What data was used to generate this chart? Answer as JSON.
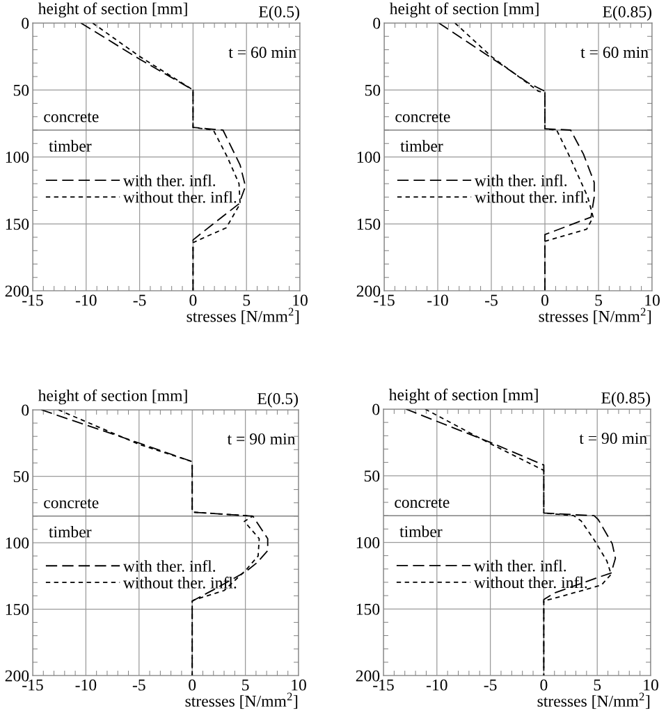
{
  "chart_data": [
    {
      "type": "line",
      "title": "E(0.5)",
      "xlabel": "stresses [N/mm$^{2}$]",
      "ylabel": "height of section [mm]",
      "annotations": [
        "t = 60 min",
        "concrete",
        "timber"
      ],
      "series": [
        {
          "name": "with ther. infl.",
          "color": "#000000",
          "line_style": "dashed",
          "x": [
            -10.5,
            -5,
            0,
            0,
            2.8,
            4.4,
            4.9,
            4.3,
            1.1,
            0,
            0
          ],
          "values": [
            0,
            27,
            50,
            78,
            80,
            106,
            122,
            135,
            155,
            162,
            200
          ]
        },
        {
          "name": "without ther. infl.",
          "color": "#000000",
          "line_style": "dotted",
          "x": [
            -9.4,
            -5,
            0,
            0,
            1.9,
            3.2,
            4.3,
            4.4,
            3.1,
            1.1,
            0,
            0
          ],
          "values": [
            0,
            25,
            50,
            78,
            80,
            100,
            120,
            135,
            153,
            160,
            164,
            200
          ]
        }
      ],
      "xlim": [
        -15,
        10
      ],
      "ylim": [
        200,
        0
      ],
      "xticks": [
        -15,
        -10,
        -5,
        0,
        5,
        10
      ],
      "yticks": [
        0,
        50,
        100,
        150,
        200
      ],
      "grid": true,
      "legend": "left",
      "ref_lines": [
        {
          "axis": "y",
          "value": 80,
          "color": "#808080"
        }
      ]
    },
    {
      "type": "line",
      "title": "E(0.85)",
      "xlabel": "stresses [N/mm$^{2}$]",
      "ylabel": "height of section [mm]",
      "annotations": [
        "t = 60 min",
        "concrete",
        "timber"
      ],
      "series": [
        {
          "name": "with ther. infl.",
          "color": "#000000",
          "line_style": "dashed",
          "x": [
            -9.9,
            -5,
            -1.5,
            0,
            0,
            2.4,
            3.6,
            4.6,
            4.6,
            4.3,
            0,
            0
          ],
          "values": [
            0,
            26,
            45,
            51,
            79,
            80,
            98,
            119,
            130,
            145,
            158,
            200
          ]
        },
        {
          "name": "without ther. infl.",
          "color": "#000000",
          "line_style": "dotted",
          "x": [
            -8.4,
            -5,
            -0.6,
            0,
            0,
            1.1,
            2.2,
            4.0,
            4.5,
            3.9,
            0,
            0
          ],
          "values": [
            0,
            25,
            51,
            52,
            79,
            80,
            98,
            130,
            145,
            154,
            163,
            200
          ]
        }
      ],
      "xlim": [
        -15,
        10
      ],
      "ylim": [
        200,
        0
      ],
      "xticks": [
        -15,
        -10,
        -5,
        0,
        5,
        10
      ],
      "yticks": [
        0,
        50,
        100,
        150,
        200
      ],
      "grid": true,
      "legend": "left",
      "ref_lines": [
        {
          "axis": "y",
          "value": 80,
          "color": "#808080"
        }
      ]
    },
    {
      "type": "line",
      "title": "E(0.5)",
      "xlabel": "stresses [N/mm$^{2}$]",
      "ylabel": "height of section [mm]",
      "annotations": [
        "t = 90 min",
        "concrete",
        "timber"
      ],
      "series": [
        {
          "name": "with ther. infl.",
          "color": "#000000",
          "line_style": "dashed",
          "x": [
            -14.2,
            -5,
            0,
            0,
            5.7,
            7.1,
            7.1,
            6.1,
            5.0,
            2.1,
            0,
            0
          ],
          "values": [
            0,
            25,
            39,
            77,
            80,
            97,
            106,
            115,
            122,
            135,
            144,
            200
          ]
        },
        {
          "name": "without ther. infl.",
          "color": "#000000",
          "line_style": "dotted",
          "x": [
            -12.6,
            -5,
            0,
            0,
            5.7,
            4.9,
            6.3,
            6.2,
            5.0,
            3.0,
            0.2,
            0,
            0
          ],
          "values": [
            0,
            26,
            39,
            77,
            80,
            84,
            97,
            110,
            121,
            136,
            143,
            144,
            200
          ]
        }
      ],
      "xlim": [
        -15,
        10
      ],
      "ylim": [
        200,
        0
      ],
      "xticks": [
        -15,
        -10,
        -5,
        0,
        5,
        10
      ],
      "yticks": [
        0,
        50,
        100,
        150,
        200
      ],
      "grid": true,
      "legend": "left",
      "ref_lines": [
        {
          "axis": "y",
          "value": 80,
          "color": "#808080"
        }
      ]
    },
    {
      "type": "line",
      "title": "E(0.85)",
      "xlabel": "stresses [N/mm$^{2}$]",
      "ylabel": "height of section [mm]",
      "annotations": [
        "t = 90 min",
        "concrete",
        "timber"
      ],
      "series": [
        {
          "name": "with ther. infl.",
          "color": "#000000",
          "line_style": "dashed",
          "x": [
            -12.9,
            -5,
            0,
            0,
            4.7,
            5.1,
            6.4,
            6.7,
            6.3,
            5.2,
            1.0,
            0,
            0
          ],
          "values": [
            0,
            25,
            42,
            78,
            80,
            83,
            101,
            112,
            123,
            126,
            138,
            143,
            200
          ]
        },
        {
          "name": "without ther. infl.",
          "color": "#000000",
          "line_style": "dotted",
          "x": [
            -11.1,
            -5,
            0,
            0,
            2.8,
            3.5,
            4.7,
            5.9,
            6.3,
            5.4,
            1.9,
            0,
            0
          ],
          "values": [
            0,
            26,
            46,
            78,
            80,
            84,
            98,
            114,
            124,
            132,
            140,
            144,
            200
          ]
        }
      ],
      "xlim": [
        -15,
        10
      ],
      "ylim": [
        200,
        0
      ],
      "xticks": [
        -15,
        -10,
        -5,
        0,
        5,
        10
      ],
      "yticks": [
        0,
        50,
        100,
        150,
        200
      ],
      "grid": true,
      "legend": "left",
      "ref_lines": [
        {
          "axis": "y",
          "value": 80,
          "color": "#808080"
        }
      ]
    }
  ]
}
